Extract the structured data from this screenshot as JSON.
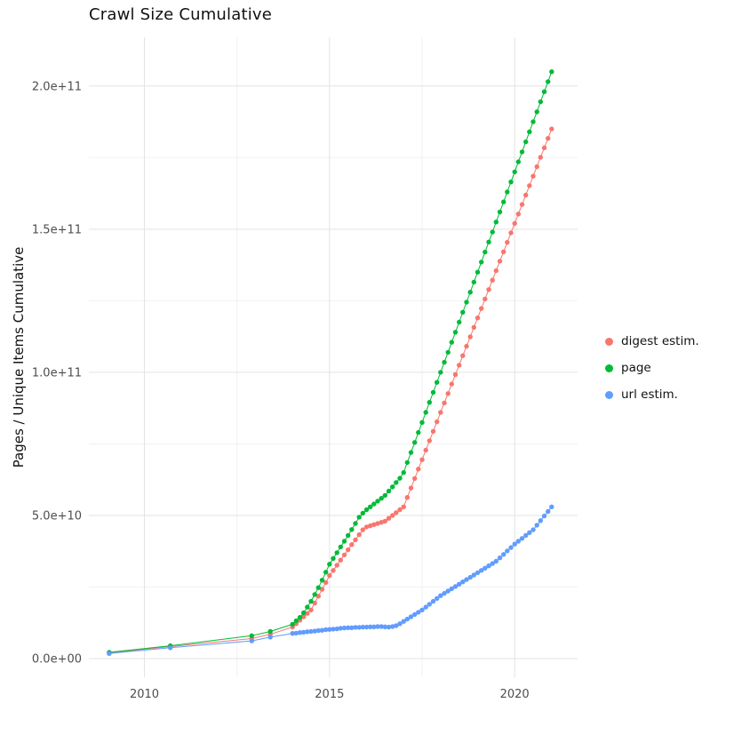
{
  "chart_data": {
    "type": "scatter",
    "title": "Crawl Size Cumulative",
    "xlabel": "",
    "ylabel": "Pages / Unique Items Cumulative",
    "value_unit": "y values given in billions (1e9)",
    "grid": true,
    "legend_position": "right",
    "xlim": [
      2008.5,
      2021.7
    ],
    "ylim_billions": [
      -6.5,
      217
    ],
    "x_ticks": [
      {
        "value": 2010,
        "label": "2010"
      },
      {
        "value": 2015,
        "label": "2015"
      },
      {
        "value": 2020,
        "label": "2020"
      }
    ],
    "y_ticks": [
      {
        "value_billions": 0,
        "label": "0.0e+00"
      },
      {
        "value_billions": 50,
        "label": "5.0e+10"
      },
      {
        "value_billions": 100,
        "label": "1.0e+11"
      },
      {
        "value_billions": 150,
        "label": "1.5e+11"
      },
      {
        "value_billions": 200,
        "label": "2.0e+11"
      }
    ],
    "x_minor": [
      2012.5,
      2017.5
    ],
    "y_minor_billions": [
      25,
      75,
      125,
      175
    ],
    "x_years": [
      2009.05,
      2010.7,
      2012.9,
      2013.4,
      2014.0,
      2014.1,
      2014.2,
      2014.3,
      2014.4,
      2014.5,
      2014.6,
      2014.7,
      2014.8,
      2014.9,
      2015.0,
      2015.1,
      2015.2,
      2015.3,
      2015.4,
      2015.5,
      2015.6,
      2015.7,
      2015.8,
      2015.9,
      2016.0,
      2016.1,
      2016.2,
      2016.3,
      2016.4,
      2016.5,
      2016.6,
      2016.7,
      2016.8,
      2016.9,
      2017.0,
      2017.1,
      2017.2,
      2017.3,
      2017.4,
      2017.5,
      2017.6,
      2017.7,
      2017.8,
      2017.9,
      2018.0,
      2018.1,
      2018.2,
      2018.3,
      2018.4,
      2018.5,
      2018.6,
      2018.7,
      2018.8,
      2018.9,
      2019.0,
      2019.1,
      2019.2,
      2019.3,
      2019.4,
      2019.5,
      2019.6,
      2019.7,
      2019.8,
      2019.9,
      2020.0,
      2020.1,
      2020.2,
      2020.3,
      2020.4,
      2020.5,
      2020.6,
      2020.7,
      2020.8,
      2020.9,
      2021.0
    ],
    "series": [
      {
        "name": "digest estim.",
        "color": "#F8766D",
        "values_billions": [
          2,
          4.2,
          7,
          8.5,
          11,
          12.2,
          13.4,
          14.6,
          15.8,
          17,
          19.4,
          21.8,
          24.2,
          26.6,
          29,
          30.8,
          32.6,
          34.4,
          36.2,
          38,
          39.8,
          41.5,
          43.3,
          45,
          46,
          46.4,
          46.8,
          47.2,
          47.6,
          48,
          49,
          50,
          51,
          52,
          53,
          56.3,
          59.6,
          62.9,
          66.2,
          69.5,
          72.8,
          76.1,
          79.4,
          82.7,
          86,
          89.3,
          92.6,
          95.9,
          99.2,
          102.5,
          105.8,
          109.1,
          112.4,
          115.7,
          119,
          122.3,
          125.6,
          128.9,
          132.2,
          135.5,
          138.8,
          142.1,
          145.4,
          148.7,
          152,
          155.3,
          158.6,
          161.9,
          165.2,
          168.5,
          171.8,
          175.1,
          178.4,
          181.7,
          185
        ]
      },
      {
        "name": "page",
        "color": "#00BA38",
        "values_billions": [
          2.2,
          4.5,
          8,
          9.5,
          12,
          13.2,
          14.4,
          16,
          18,
          20,
          22.4,
          24.8,
          27.4,
          30.2,
          33,
          35,
          37,
          39,
          41,
          43,
          45.1,
          47.2,
          49.4,
          50.8,
          52,
          53,
          54,
          55,
          56,
          57,
          58.5,
          60,
          61.5,
          63,
          65,
          68.5,
          72,
          75.5,
          79,
          82.5,
          86,
          89.5,
          93,
          96.5,
          100,
          103.5,
          107,
          110.5,
          114,
          117.5,
          121,
          124.5,
          128,
          131.5,
          135,
          138.5,
          142,
          145.5,
          149,
          152.5,
          156,
          159.5,
          163,
          166.5,
          170,
          173.5,
          177,
          180.5,
          184,
          187.5,
          191,
          194.5,
          198,
          201.5,
          205
        ]
      },
      {
        "name": "url estim.",
        "color": "#619CFF",
        "values_billions": [
          1.8,
          3.8,
          6.2,
          7.5,
          8.8,
          8.9,
          9.1,
          9.2,
          9.4,
          9.5,
          9.6,
          9.8,
          9.9,
          10.1,
          10.2,
          10.3,
          10.4,
          10.6,
          10.7,
          10.8,
          10.8,
          10.9,
          10.9,
          11,
          11,
          11.1,
          11.1,
          11.2,
          11.2,
          11.1,
          11,
          11.2,
          11.5,
          12.2,
          13,
          13.8,
          14.6,
          15.4,
          16.2,
          17,
          18,
          19,
          20,
          21,
          22,
          22.8,
          23.6,
          24.4,
          25.2,
          26,
          26.8,
          27.6,
          28.4,
          29.2,
          30,
          30.8,
          31.6,
          32.4,
          33.2,
          34,
          35.2,
          36.4,
          37.6,
          38.8,
          40,
          41,
          42,
          43,
          44,
          45,
          46.6,
          48.2,
          49.8,
          51.4,
          53
        ]
      }
    ]
  }
}
